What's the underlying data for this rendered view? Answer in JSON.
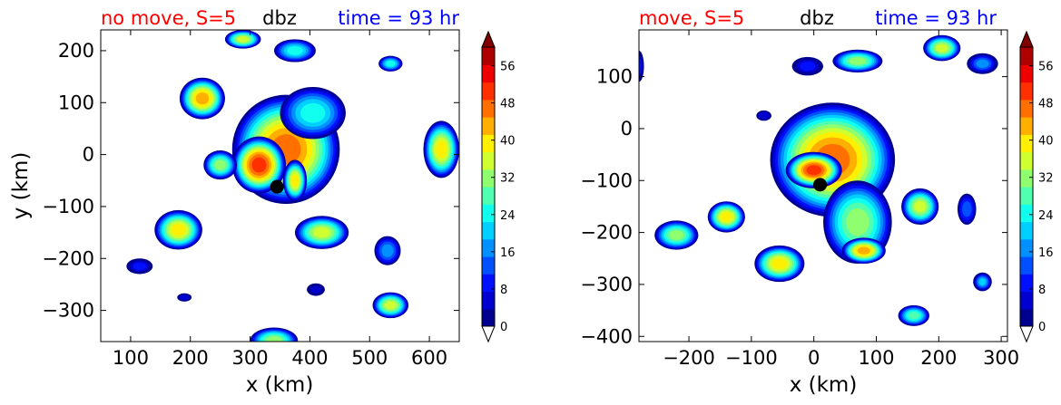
{
  "colormap": [
    "#00008f",
    "#0000cf",
    "#0010ff",
    "#0050ff",
    "#0090ff",
    "#00d0ff",
    "#10ffef",
    "#50ffaf",
    "#90ff6f",
    "#cfff30",
    "#ffef00",
    "#ffaf00",
    "#ff7000",
    "#ff3000",
    "#ef0000",
    "#af0000"
  ],
  "chart_data": [
    {
      "type": "heatmap",
      "title_left": "no move, S=5",
      "title_center": "dbz",
      "title_right": "time = 93 hr",
      "title_left_color": "#ff0000",
      "title_right_color": "#0000ff",
      "xlabel": "x (km)",
      "ylabel": "y (km)",
      "xlim": [
        50,
        650
      ],
      "ylim": [
        -360,
        240
      ],
      "xticks": [
        100,
        200,
        300,
        400,
        500,
        600
      ],
      "xtick_labels": [
        "100",
        "200",
        "300",
        "400",
        "500",
        "600"
      ],
      "yticks": [
        200,
        100,
        0,
        -100,
        -200,
        -300
      ],
      "ytick_labels": [
        "200",
        "100",
        "0",
        "−100",
        "−200",
        "−300"
      ],
      "colorbar": {
        "label": "dbz",
        "min": 0,
        "max": 60,
        "ticks": [
          0,
          8,
          16,
          24,
          32,
          40,
          48,
          56
        ],
        "tick_labels": [
          "0",
          "8",
          "16",
          "24",
          "32",
          "40",
          "48",
          "56"
        ],
        "extend": "both"
      },
      "center_marker": {
        "x": 345,
        "y": -62
      },
      "cells": [
        {
          "x": 360,
          "y": 10,
          "rx": 90,
          "ry": 105,
          "peak": 52
        },
        {
          "x": 315,
          "y": -20,
          "rx": 45,
          "ry": 55,
          "peak": 56
        },
        {
          "x": 405,
          "y": 80,
          "rx": 55,
          "ry": 50,
          "peak": 28
        },
        {
          "x": 220,
          "y": 108,
          "rx": 38,
          "ry": 40,
          "peak": 46
        },
        {
          "x": 180,
          "y": -145,
          "rx": 40,
          "ry": 38,
          "peak": 42
        },
        {
          "x": 420,
          "y": -150,
          "rx": 45,
          "ry": 32,
          "peak": 40
        },
        {
          "x": 375,
          "y": -50,
          "rx": 20,
          "ry": 40,
          "peak": 44
        },
        {
          "x": 250,
          "y": -20,
          "rx": 28,
          "ry": 28,
          "peak": 36
        },
        {
          "x": 375,
          "y": 200,
          "rx": 35,
          "ry": 22,
          "peak": 28
        },
        {
          "x": 288,
          "y": 222,
          "rx": 30,
          "ry": 18,
          "peak": 40
        },
        {
          "x": 340,
          "y": -358,
          "rx": 40,
          "ry": 25,
          "peak": 36
        },
        {
          "x": 535,
          "y": -290,
          "rx": 30,
          "ry": 25,
          "peak": 38
        },
        {
          "x": 620,
          "y": 10,
          "rx": 30,
          "ry": 55,
          "peak": 42
        },
        {
          "x": 530,
          "y": -185,
          "rx": 22,
          "ry": 28,
          "peak": 20
        },
        {
          "x": 535,
          "y": 175,
          "rx": 20,
          "ry": 15,
          "peak": 28
        },
        {
          "x": 115,
          "y": -215,
          "rx": 22,
          "ry": 15,
          "peak": 14
        },
        {
          "x": 410,
          "y": -260,
          "rx": 15,
          "ry": 12,
          "peak": 10
        },
        {
          "x": 190,
          "y": -275,
          "rx": 12,
          "ry": 8,
          "peak": 8
        }
      ]
    },
    {
      "type": "heatmap",
      "title_left": "move, S=5",
      "title_center": "dbz",
      "title_right": "time = 93 hr",
      "title_left_color": "#ff0000",
      "title_right_color": "#0000ff",
      "xlabel": "x (km)",
      "ylabel": "",
      "xlim": [
        -280,
        310
      ],
      "ylim": [
        -410,
        190
      ],
      "xticks": [
        -200,
        -100,
        0,
        100,
        200,
        300
      ],
      "xtick_labels": [
        "−200",
        "−100",
        "0",
        "100",
        "200",
        "300"
      ],
      "yticks": [
        100,
        0,
        -100,
        -200,
        -300,
        -400
      ],
      "ytick_labels": [
        "100",
        "0",
        "−100",
        "−200",
        "−300",
        "−400"
      ],
      "colorbar": {
        "label": "dbz",
        "min": 0,
        "max": 60,
        "ticks": [
          0,
          8,
          16,
          24,
          32,
          40,
          48,
          56
        ],
        "tick_labels": [
          "0",
          "8",
          "16",
          "24",
          "32",
          "40",
          "48",
          "56"
        ],
        "extend": "both"
      },
      "center_marker": {
        "x": 10,
        "y": -108
      },
      "cells": [
        {
          "x": 30,
          "y": -60,
          "rx": 100,
          "ry": 110,
          "peak": 50
        },
        {
          "x": 0,
          "y": -80,
          "rx": 45,
          "ry": 35,
          "peak": 54
        },
        {
          "x": 70,
          "y": -180,
          "rx": 55,
          "ry": 80,
          "peak": 36
        },
        {
          "x": 80,
          "y": -235,
          "rx": 35,
          "ry": 25,
          "peak": 46
        },
        {
          "x": -55,
          "y": -260,
          "rx": 40,
          "ry": 35,
          "peak": 44
        },
        {
          "x": -140,
          "y": -170,
          "rx": 30,
          "ry": 30,
          "peak": 42
        },
        {
          "x": -220,
          "y": -205,
          "rx": 35,
          "ry": 28,
          "peak": 36
        },
        {
          "x": 170,
          "y": -150,
          "rx": 30,
          "ry": 35,
          "peak": 40
        },
        {
          "x": 70,
          "y": 130,
          "rx": 40,
          "ry": 22,
          "peak": 36
        },
        {
          "x": 205,
          "y": 155,
          "rx": 30,
          "ry": 25,
          "peak": 38
        },
        {
          "x": 270,
          "y": 125,
          "rx": 25,
          "ry": 20,
          "peak": 22
        },
        {
          "x": 160,
          "y": -360,
          "rx": 25,
          "ry": 20,
          "peak": 30
        },
        {
          "x": 270,
          "y": -295,
          "rx": 15,
          "ry": 18,
          "peak": 26
        },
        {
          "x": 245,
          "y": -155,
          "rx": 15,
          "ry": 30,
          "peak": 16
        },
        {
          "x": -10,
          "y": 120,
          "rx": 25,
          "ry": 18,
          "peak": 14
        },
        {
          "x": -80,
          "y": 25,
          "rx": 12,
          "ry": 10,
          "peak": 8
        },
        {
          "x": -280,
          "y": 120,
          "rx": 8,
          "ry": 30,
          "peak": 14
        }
      ]
    }
  ]
}
